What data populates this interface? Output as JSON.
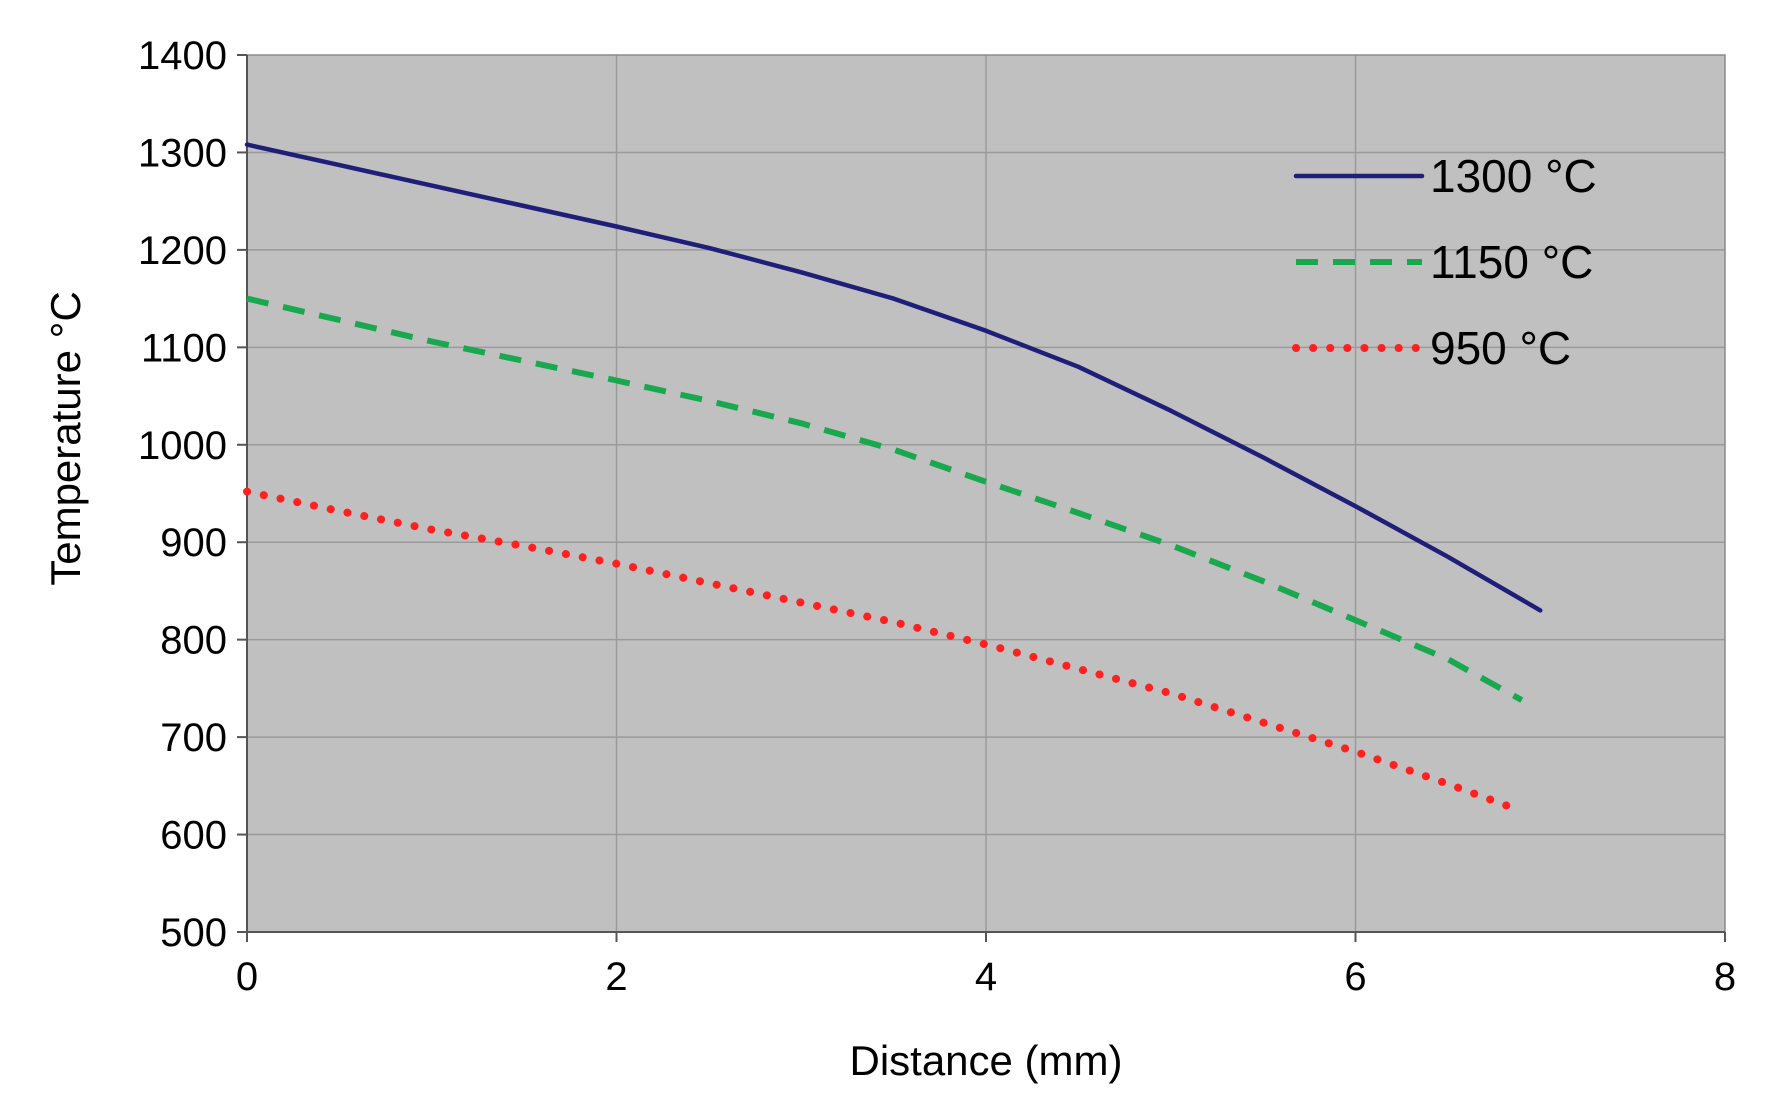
{
  "chart_data": {
    "type": "line",
    "title": "",
    "xlabel": "Distance (mm)",
    "ylabel": "Temperature °C",
    "xlim": [
      0,
      8
    ],
    "ylim": [
      500,
      1400
    ],
    "xticks": [
      0,
      2,
      4,
      6,
      8
    ],
    "yticks": [
      500,
      600,
      700,
      800,
      900,
      1000,
      1100,
      1200,
      1300,
      1400
    ],
    "grid": true,
    "plot_background": "#c0c0c0",
    "legend_position": "top-right",
    "series": [
      {
        "name": "1300 °C",
        "color": "#1f1f7a",
        "style": "solid",
        "x": [
          0,
          0.5,
          1,
          1.5,
          2,
          2.5,
          3,
          3.5,
          4,
          4.5,
          5,
          5.5,
          6,
          6.5,
          7
        ],
        "y": [
          1308,
          1287,
          1266,
          1245,
          1224,
          1202,
          1177,
          1150,
          1117,
          1080,
          1035,
          987,
          937,
          885,
          830
        ]
      },
      {
        "name": "1150 °C",
        "color": "#1aa84f",
        "style": "dashed",
        "x": [
          0,
          0.5,
          1,
          1.5,
          2,
          2.5,
          3,
          3.5,
          4,
          4.5,
          5,
          5.5,
          6,
          6.5,
          6.9
        ],
        "y": [
          1150,
          1128,
          1106,
          1086,
          1066,
          1045,
          1022,
          995,
          962,
          930,
          897,
          860,
          820,
          780,
          738
        ]
      },
      {
        "name": "950 °C",
        "color": "#ff2020",
        "style": "dotted",
        "x": [
          0,
          0.5,
          1,
          1.5,
          2,
          2.5,
          3,
          3.5,
          4,
          4.5,
          5,
          5.5,
          6,
          6.5,
          6.9
        ],
        "y": [
          952,
          932,
          913,
          896,
          878,
          858,
          838,
          818,
          795,
          770,
          745,
          715,
          685,
          652,
          624
        ]
      }
    ]
  }
}
